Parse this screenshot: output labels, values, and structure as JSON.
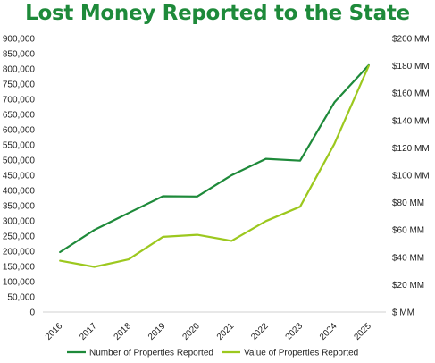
{
  "chart_data": {
    "type": "line",
    "title": "Lost Money Reported to the State",
    "title_color": "#1e8a3a",
    "categories": [
      "2016",
      "2017",
      "2018",
      "2019",
      "2020",
      "2021",
      "2022",
      "2023",
      "2024",
      "2025"
    ],
    "y_left": {
      "ylim": [
        0,
        900000
      ],
      "ticks": [
        0,
        50000,
        100000,
        150000,
        200000,
        250000,
        300000,
        350000,
        400000,
        450000,
        500000,
        550000,
        600000,
        650000,
        700000,
        750000,
        800000,
        850000,
        900000
      ],
      "tick_labels": [
        "0",
        "50,000",
        "100,000",
        "150,000",
        "200,000",
        "250,000",
        "300,000",
        "350,000",
        "400,000",
        "450,000",
        "500,000",
        "550,000",
        "600,000",
        "650,000",
        "700,000",
        "750,000",
        "800,000",
        "850,000",
        "900,000"
      ]
    },
    "y_right": {
      "ylim": [
        0,
        200
      ],
      "ticks": [
        0,
        20,
        40,
        60,
        80,
        100,
        120,
        140,
        160,
        180,
        200
      ],
      "tick_labels": [
        "$ MM",
        "$20 MM",
        "$40 MM",
        "$60 MM",
        "$80 MM",
        "$100 MM",
        "$120 MM",
        "$140 MM",
        "$160 MM",
        "$180 MM",
        "$200 MM"
      ]
    },
    "series": [
      {
        "name": "Number of Properties Reported",
        "axis": "left",
        "color": "#1e8a3a",
        "values": [
          197000,
          270000,
          326000,
          381000,
          380000,
          450000,
          504000,
          498000,
          690000,
          812000
        ]
      },
      {
        "name": "Value of Properties Reported",
        "axis": "right",
        "color": "#9cc81e",
        "values": [
          37.5,
          33,
          38.5,
          55,
          56.5,
          52,
          66.5,
          77,
          123,
          180
        ]
      }
    ],
    "legend_position": "bottom",
    "grid": false
  }
}
